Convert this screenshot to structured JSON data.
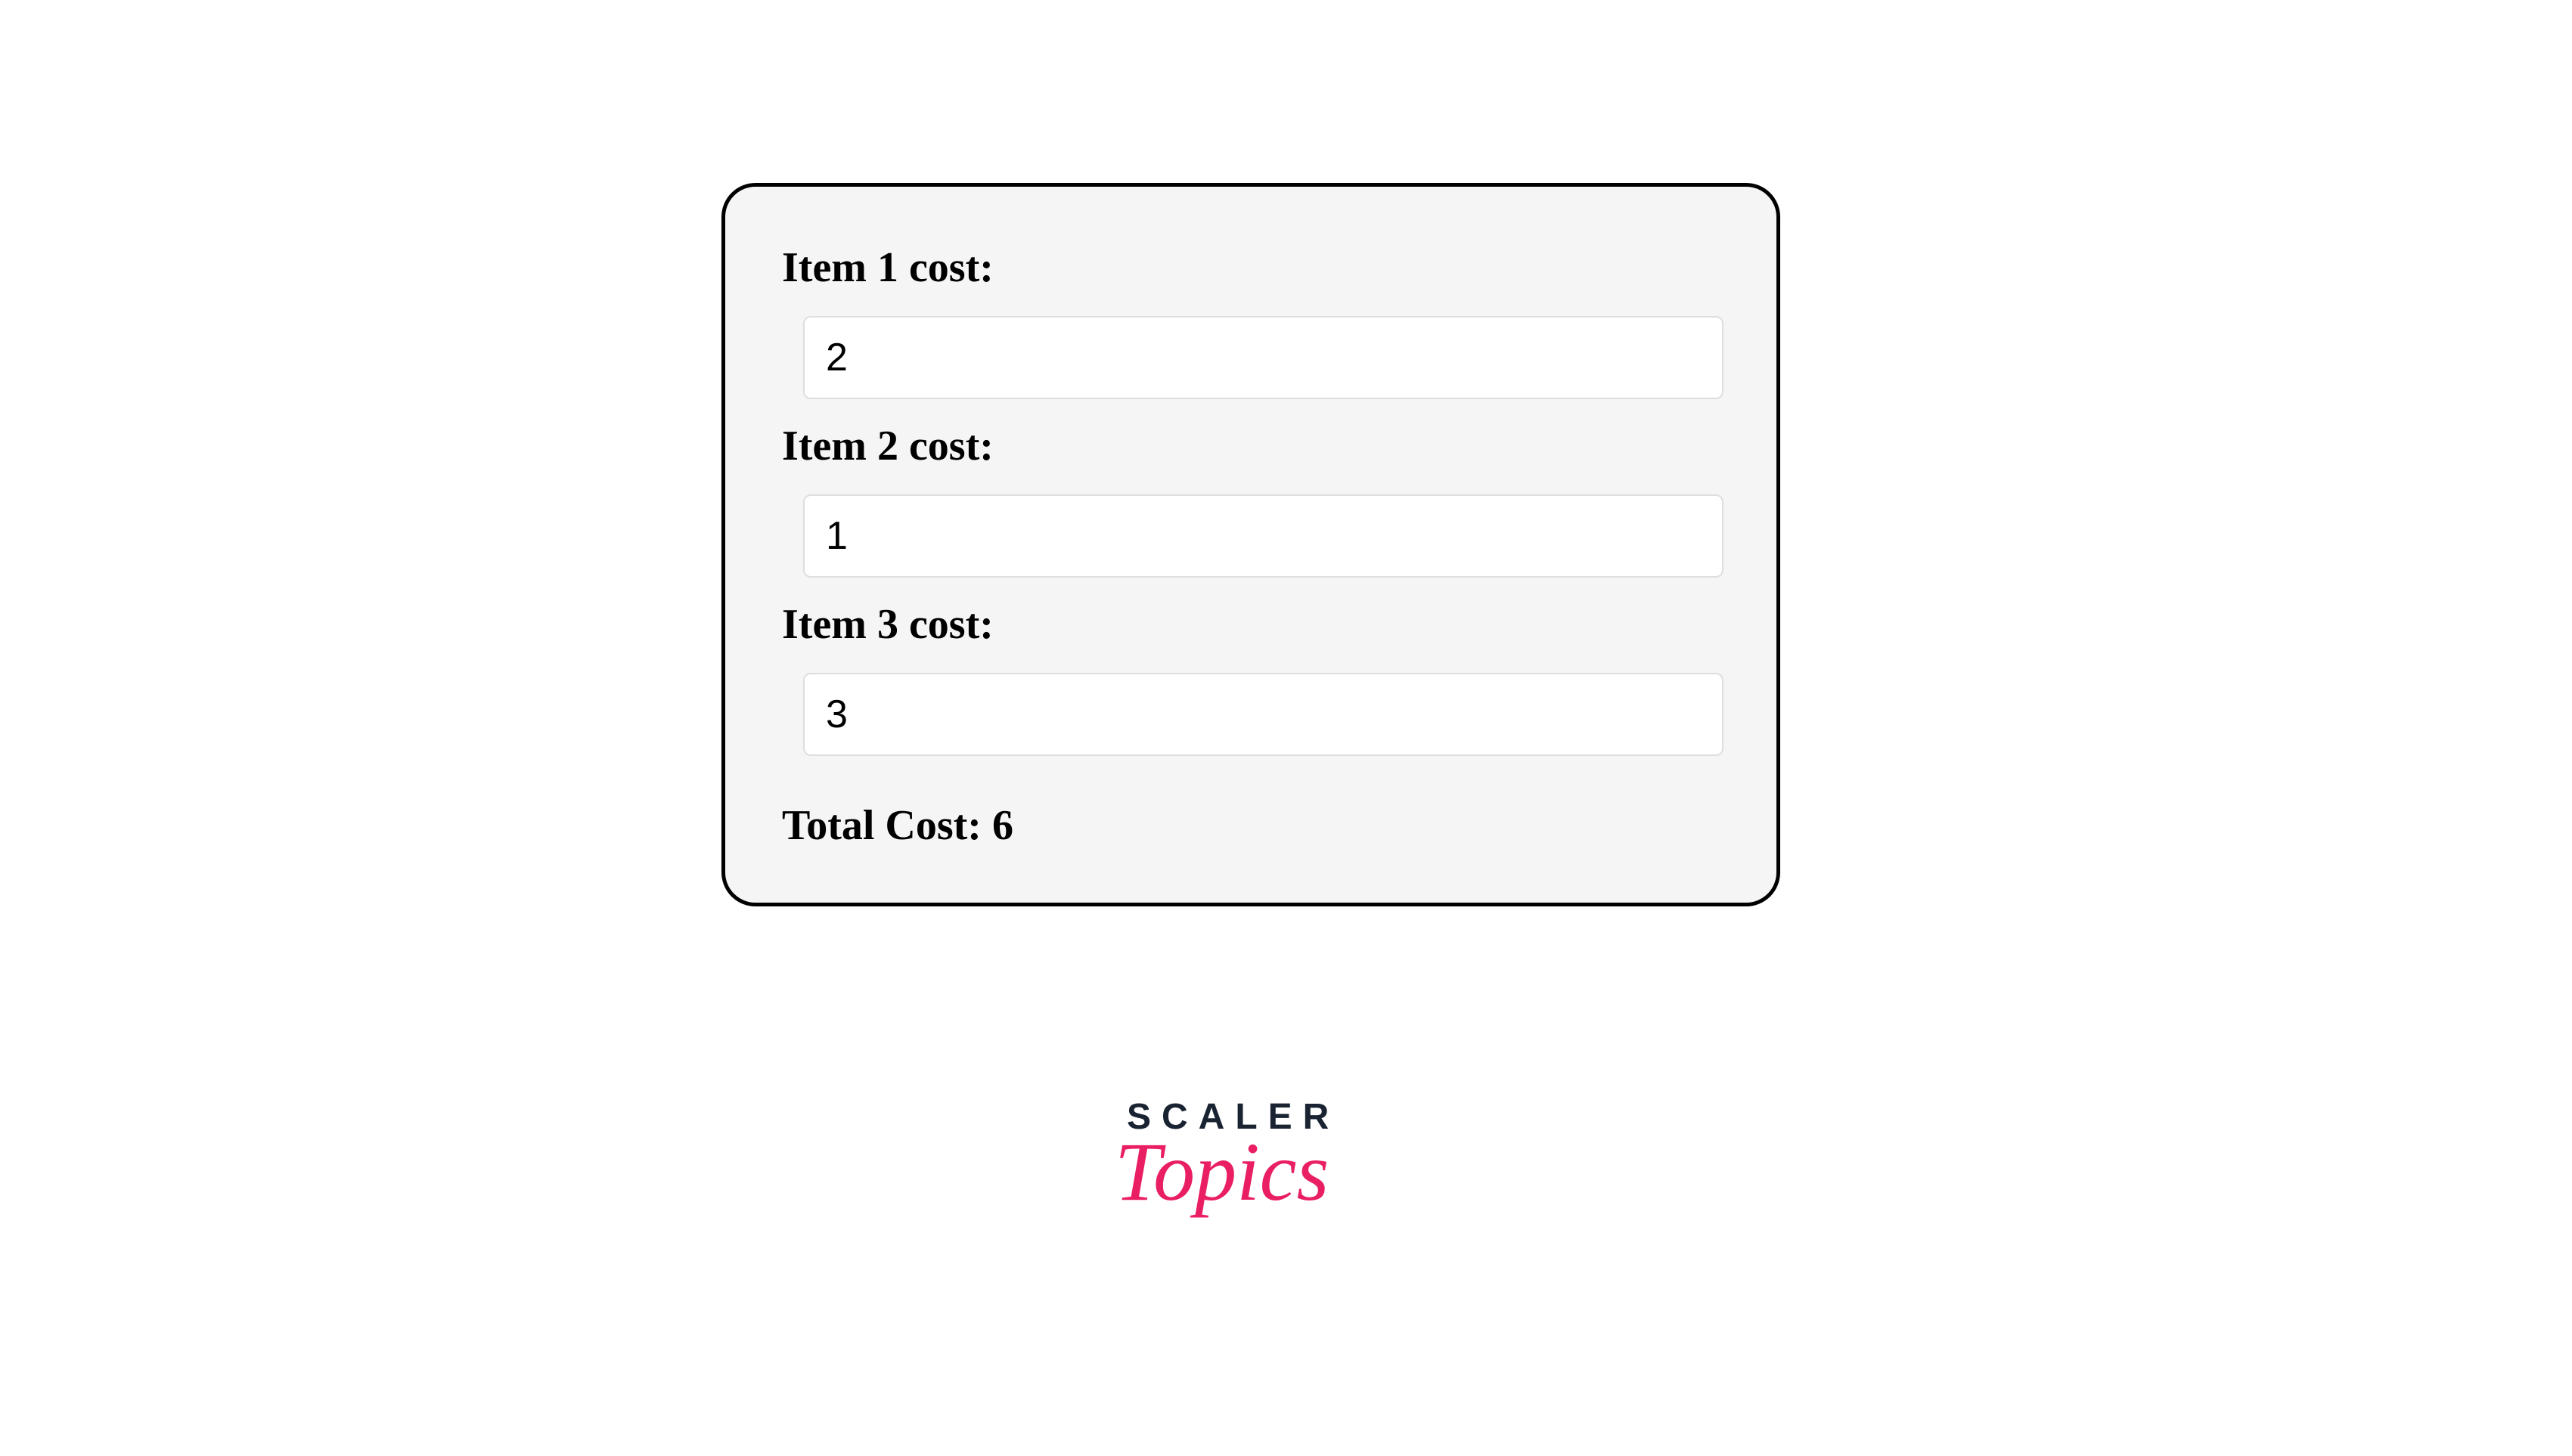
{
  "form": {
    "background_color": "#f5f5f5",
    "border_color": "#000000",
    "border_radius": 45,
    "input_background": "#ffffff",
    "input_border_color": "#dedede",
    "items": [
      {
        "label": "Item 1 cost:",
        "value": "2"
      },
      {
        "label": "Item 2 cost:",
        "value": "1"
      },
      {
        "label": "Item 3 cost:",
        "value": "3"
      }
    ],
    "total_label": "Total Cost: ",
    "total_value": "6"
  },
  "brand": {
    "line1": "SCALER",
    "line2": "Topics",
    "line1_color": "#1a2332",
    "line2_color": "#e91e63"
  }
}
